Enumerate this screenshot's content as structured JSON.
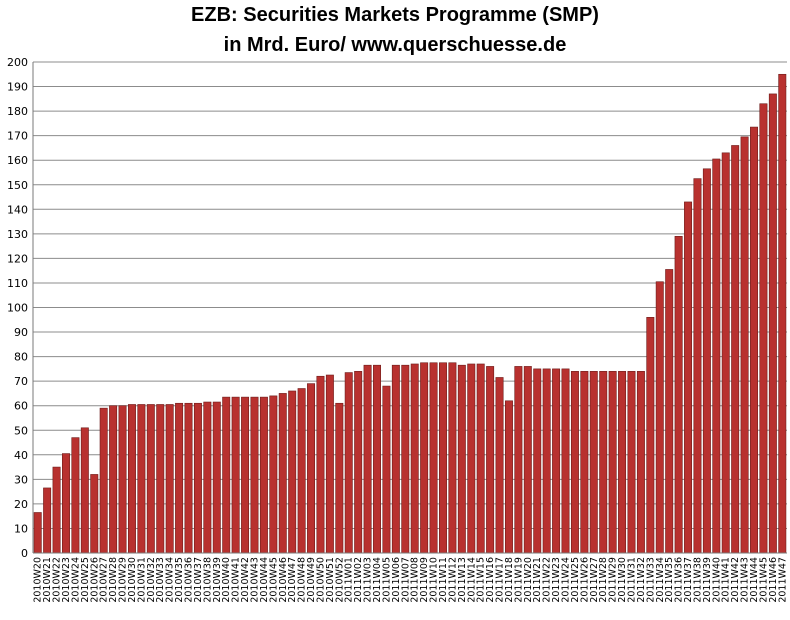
{
  "chart_data": {
    "type": "bar",
    "title": "EZB: Securities Markets Programme (SMP)",
    "subtitle": "in Mrd. Euro/ www.querschuesse.de",
    "xlabel": "",
    "ylabel": "",
    "ylim": [
      0,
      200
    ],
    "yticks": [
      0,
      10,
      20,
      30,
      40,
      50,
      60,
      70,
      80,
      90,
      100,
      110,
      120,
      130,
      140,
      150,
      160,
      170,
      180,
      190,
      200
    ],
    "grid": true,
    "bar_color": "#b8312f",
    "categories": [
      "2010W20",
      "2010W21",
      "2010W22",
      "2010W23",
      "2010W24",
      "2010W25",
      "2010W26",
      "2010W27",
      "2010W28",
      "2010W29",
      "2010W30",
      "2010W31",
      "2010W32",
      "2010W33",
      "2010W34",
      "2010W35",
      "2010W36",
      "2010W37",
      "2010W38",
      "2010W39",
      "2010W40",
      "2010W41",
      "2010W42",
      "2010W43",
      "2010W44",
      "2010W45",
      "2010W46",
      "2010W47",
      "2010W48",
      "2010W49",
      "2010W50",
      "2010W51",
      "2010W52",
      "2011W01",
      "2011W02",
      "2011W03",
      "2011W04",
      "2011W05",
      "2011W06",
      "2011W07",
      "2011W08",
      "2011W09",
      "2011W10",
      "2011W11",
      "2011W12",
      "2011W13",
      "2011W14",
      "2011W15",
      "2011W16",
      "2011W17",
      "2011W18",
      "2011W19",
      "2011W20",
      "2011W21",
      "2011W22",
      "2011W23",
      "2011W24",
      "2011W25",
      "2011W26",
      "2011W27",
      "2011W28",
      "2011W29",
      "2011W30",
      "2011W31",
      "2011W32",
      "2011W33",
      "2011W34",
      "2011W35",
      "2011W36",
      "2011W37",
      "2011W38",
      "2011W39",
      "2011W40",
      "2011W41",
      "2011W42",
      "2011W43",
      "2011W44",
      "2011W45",
      "2011W46",
      "2011W47"
    ],
    "values": [
      16.5,
      26.5,
      35,
      40.5,
      47,
      51,
      32,
      59,
      60,
      60,
      60.5,
      60.5,
      60.5,
      60.5,
      60.5,
      61,
      61,
      61,
      61.5,
      61.5,
      63.5,
      63.5,
      63.5,
      63.5,
      63.5,
      64,
      65,
      66,
      67,
      69,
      72,
      72.5,
      61,
      73.5,
      74,
      76.5,
      76.5,
      68,
      76.5,
      76.5,
      77,
      77.5,
      77.5,
      77.5,
      77.5,
      76.5,
      77,
      77,
      76,
      71.5,
      62,
      76,
      76,
      75,
      75,
      75,
      75,
      74,
      74,
      74,
      74,
      74,
      74,
      74,
      74,
      96,
      110.5,
      115.5,
      129,
      143,
      152.5,
      156.5,
      160.5,
      163,
      166,
      169.5,
      173.5,
      183,
      187,
      195
    ]
  }
}
